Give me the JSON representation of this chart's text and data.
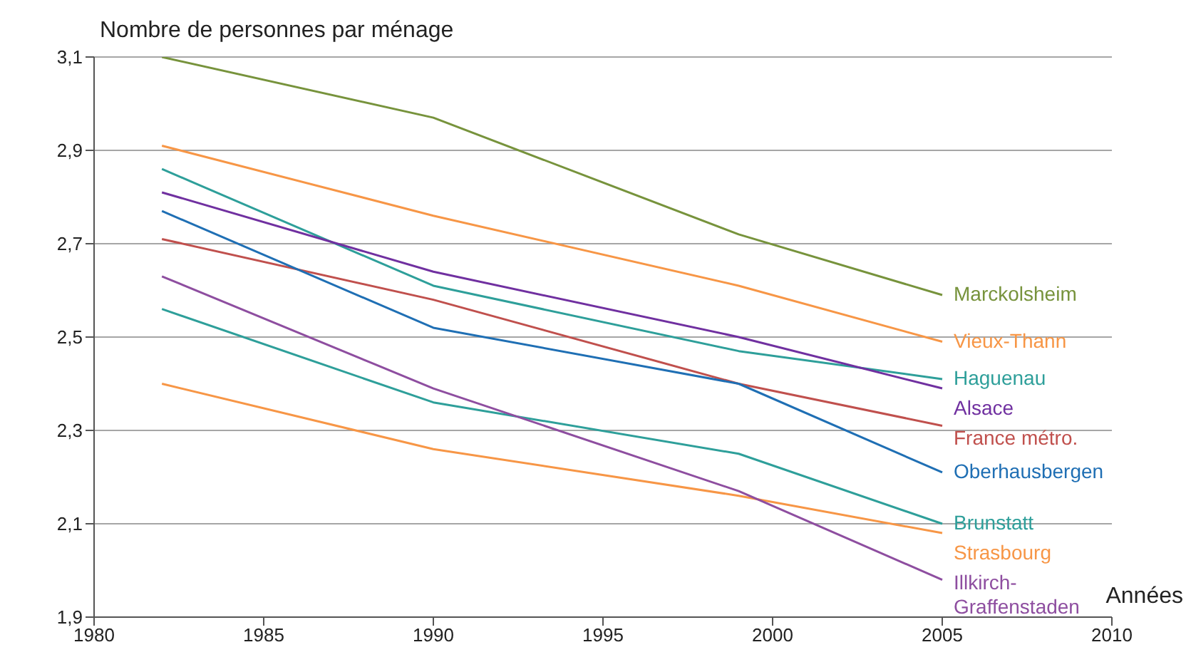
{
  "chart_data": {
    "type": "line",
    "ylabel": "Nombre  de personnes par ménage",
    "xlabel": "Années",
    "x": [
      1982,
      1990,
      1999,
      2005
    ],
    "series": [
      {
        "name": "Marckolsheim",
        "color": "#77933c",
        "values": [
          3.1,
          2.97,
          2.72,
          2.59
        ]
      },
      {
        "name": "Vieux-Thann",
        "color": "#f79646",
        "values": [
          2.91,
          2.76,
          2.61,
          2.49
        ]
      },
      {
        "name": "Haguenau",
        "color": "#2e9f9a",
        "values": [
          2.86,
          2.61,
          2.47,
          2.41
        ]
      },
      {
        "name": "Alsace",
        "color": "#7030a0",
        "values": [
          2.81,
          2.64,
          2.5,
          2.39
        ]
      },
      {
        "name": "France métro.",
        "color": "#c0504d",
        "values": [
          2.71,
          2.58,
          2.4,
          2.31
        ]
      },
      {
        "name": "Oberhausbergen",
        "color": "#1f6fb4",
        "values": [
          2.77,
          2.52,
          2.4,
          2.21
        ]
      },
      {
        "name": "Brunstatt",
        "color": "#2e9f9a",
        "values": [
          2.56,
          2.36,
          2.25,
          2.1
        ]
      },
      {
        "name": "Strasbourg",
        "color": "#f79646",
        "values": [
          2.4,
          2.26,
          2.16,
          2.08
        ]
      },
      {
        "name": "Illkirch-Graffenstaden",
        "color": "#8e4ea0",
        "values": [
          2.63,
          2.39,
          2.17,
          1.98
        ]
      }
    ],
    "xlim": [
      1980,
      2010
    ],
    "xticks": [
      1980,
      1985,
      1990,
      1995,
      2000,
      2005,
      2010
    ],
    "ylim": [
      1.9,
      3.1
    ],
    "yticks": [
      {
        "value": 1.9,
        "label": "1,9"
      },
      {
        "value": 2.1,
        "label": "2,1"
      },
      {
        "value": 2.3,
        "label": "2,3"
      },
      {
        "value": 2.5,
        "label": "2,5"
      },
      {
        "value": 2.7,
        "label": "2,7"
      },
      {
        "value": 2.9,
        "label": "2,9"
      },
      {
        "value": 3.1,
        "label": "3,1"
      }
    ],
    "grid": "y",
    "marker": "none",
    "line_style": "solid"
  }
}
